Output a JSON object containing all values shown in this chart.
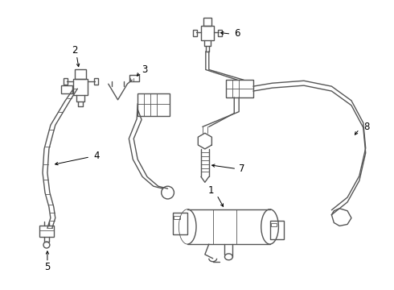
{
  "bg_color": "#ffffff",
  "line_color": "#555555",
  "lw": 1.0,
  "tlw": 0.6,
  "label_fs": 8.5
}
